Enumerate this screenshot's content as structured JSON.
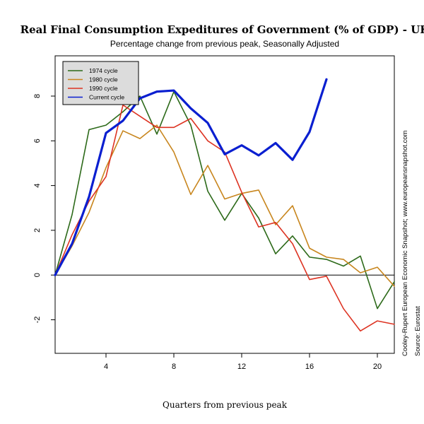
{
  "chart_data": {
    "type": "line",
    "title": "Real Final Consumption Expeditures of Government (% of GDP) - UK",
    "subtitle": "Percentage change from previous peak, Seasonally Adjusted",
    "xlabel": "Quarters from previous peak",
    "ylabel": "",
    "xlim": [
      1,
      21
    ],
    "ylim": [
      -3.5,
      9.8
    ],
    "x_ticks": [
      4,
      8,
      12,
      16,
      20
    ],
    "y_ticks": [
      -2,
      0,
      2,
      4,
      6,
      8
    ],
    "grid": false,
    "legend_position": "top-left",
    "zero_line": true,
    "series": [
      {
        "name": "1974 cycle",
        "color": "#2d6a1a",
        "width": 1.6,
        "x": [
          1,
          2,
          3,
          4,
          5,
          6,
          7,
          8,
          9,
          10,
          11,
          12,
          13,
          14,
          15,
          16,
          17,
          18,
          19,
          20,
          21
        ],
        "values": [
          0,
          2.7,
          6.5,
          6.7,
          7.3,
          8.0,
          6.3,
          8.2,
          6.7,
          3.75,
          2.45,
          3.65,
          2.55,
          0.95,
          1.75,
          0.8,
          0.7,
          0.4,
          0.85,
          -1.5,
          -0.3
        ]
      },
      {
        "name": "1980 cycle",
        "color": "#c8861e",
        "width": 1.6,
        "x": [
          1,
          2,
          3,
          4,
          5,
          6,
          7,
          8,
          9,
          10,
          11,
          12,
          13,
          14,
          15,
          16,
          17,
          18,
          19,
          20,
          21
        ],
        "values": [
          0,
          1.3,
          2.8,
          4.8,
          6.45,
          6.1,
          6.7,
          5.5,
          3.6,
          4.9,
          3.4,
          3.65,
          3.8,
          2.25,
          3.1,
          1.2,
          0.8,
          0.7,
          0.1,
          0.35,
          -0.5
        ]
      },
      {
        "name": "1990 cycle",
        "color": "#dd3322",
        "width": 1.6,
        "x": [
          1,
          2,
          3,
          4,
          5,
          6,
          7,
          8,
          9,
          10,
          11,
          12,
          13,
          14,
          15,
          16,
          17,
          18,
          19,
          20,
          21
        ],
        "values": [
          0,
          1.8,
          3.3,
          4.4,
          7.6,
          7.1,
          6.6,
          6.6,
          7.0,
          6.0,
          5.5,
          3.7,
          2.15,
          2.35,
          1.4,
          -0.2,
          -0.05,
          -1.5,
          -2.5,
          -2.05,
          -2.2
        ]
      },
      {
        "name": "Current cycle",
        "color": "#0a1fd0",
        "width": 3.2,
        "x": [
          1,
          2,
          3,
          4,
          5,
          6,
          7,
          8,
          9,
          10,
          11,
          12,
          13,
          14,
          15,
          16,
          17
        ],
        "values": [
          0,
          1.4,
          3.5,
          6.35,
          6.9,
          7.9,
          8.2,
          8.25,
          7.45,
          6.8,
          5.4,
          5.8,
          5.35,
          5.9,
          5.15,
          6.4,
          8.75
        ]
      }
    ],
    "side_notes": [
      "Cooley-Rupert European Economic Snapshot; www.europeansnapshot.com",
      "Source: Eurostat"
    ]
  }
}
